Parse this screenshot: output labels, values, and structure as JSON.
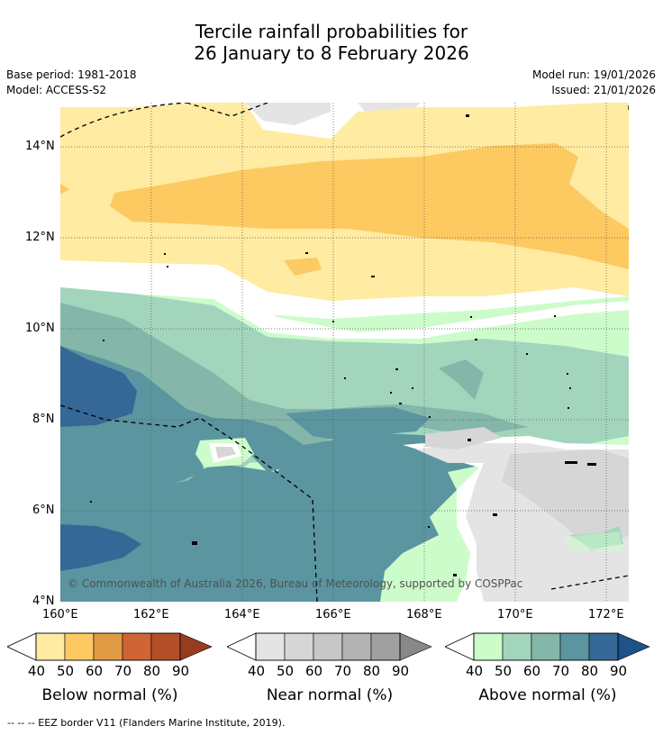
{
  "header": {
    "title_line1": "Tercile rainfall probabilities for",
    "title_line2": "26 January to 8 February 2026",
    "base_period": "Base period: 1981-2018",
    "model": "Model: ACCESS-S2",
    "model_run": "Model run: 19/01/2026",
    "issued": "Issued: 21/01/2026"
  },
  "map": {
    "lat_labels": [
      "14°N",
      "12°N",
      "10°N",
      "8°N",
      "6°N",
      "4°N"
    ],
    "lon_labels": [
      "160°E",
      "162°E",
      "164°E",
      "166°E",
      "168°E",
      "170°E",
      "172°E"
    ],
    "copyright": "© Commonwealth of Australia 2026, Bureau of Meteorology, supported by COSPPac"
  },
  "legends": [
    {
      "name": "below",
      "label": "Below normal (%)",
      "ticks": [
        "40",
        "50",
        "60",
        "70",
        "80",
        "90"
      ],
      "colors": [
        "#ffeba1",
        "#fdc961",
        "#e19b44",
        "#cf6434",
        "#b24f28",
        "#973c21"
      ]
    },
    {
      "name": "near",
      "label": "Near normal (%)",
      "ticks": [
        "40",
        "50",
        "60",
        "70",
        "80",
        "90"
      ],
      "colors": [
        "#e4e4e4",
        "#d6d6d6",
        "#c7c7c7",
        "#b3b3b3",
        "#a0a0a0",
        "#888888"
      ]
    },
    {
      "name": "above",
      "label": "Above normal (%)",
      "ticks": [
        "40",
        "50",
        "60",
        "70",
        "80",
        "90"
      ],
      "colors": [
        "#cdfccb",
        "#a3d5bd",
        "#84b6aa",
        "#5a95a0",
        "#356896",
        "#1e5288"
      ]
    }
  ],
  "footnote": "--  --  -- EEZ border V11 (Flanders Marine Institute, 2019)."
}
